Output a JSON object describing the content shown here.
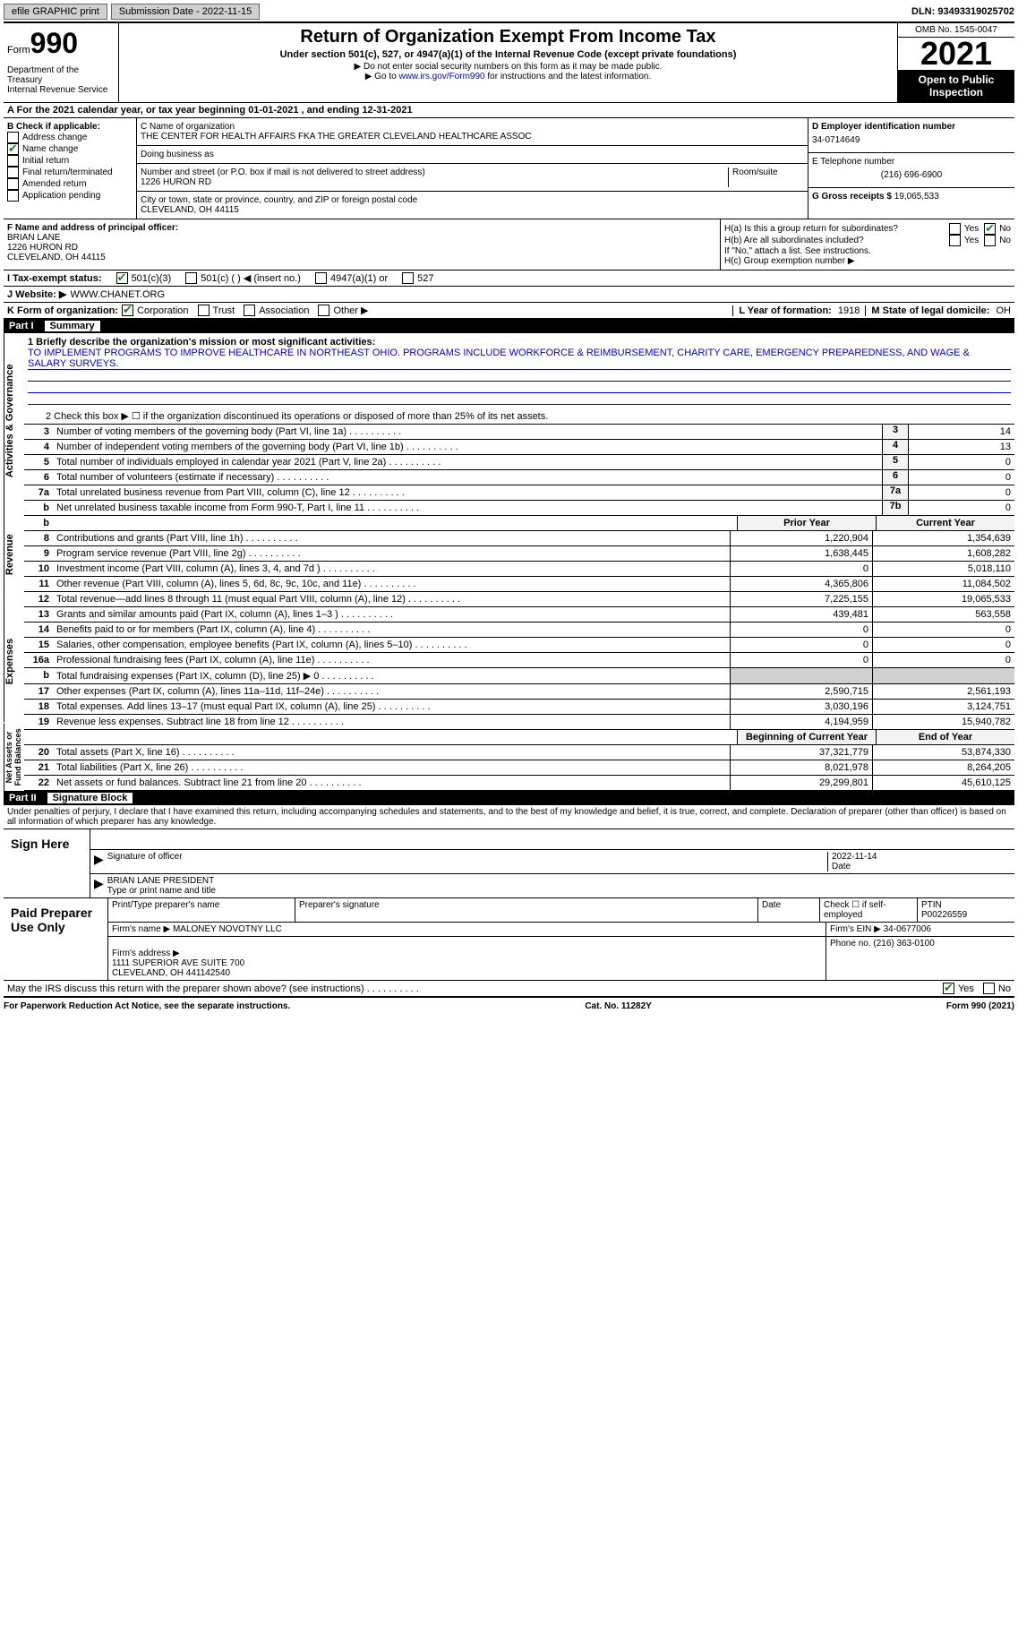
{
  "topbar": {
    "efile": "efile GRAPHIC print",
    "submission_label": "Submission Date - 2022-11-15",
    "dln": "DLN: 93493319025702"
  },
  "header": {
    "form_label": "Form",
    "form_num": "990",
    "dept": "Department of the Treasury\nInternal Revenue Service",
    "title": "Return of Organization Exempt From Income Tax",
    "subtitle": "Under section 501(c), 527, or 4947(a)(1) of the Internal Revenue Code (except private foundations)",
    "note1": "▶ Do not enter social security numbers on this form as it may be made public.",
    "note2_pre": "▶ Go to ",
    "note2_link": "www.irs.gov/Form990",
    "note2_post": " for instructions and the latest information.",
    "omb": "OMB No. 1545-0047",
    "year": "2021",
    "otp": "Open to Public Inspection"
  },
  "period": "A For the 2021 calendar year, or tax year beginning 01-01-2021   , and ending 12-31-2021",
  "boxB": {
    "label": "B Check if applicable:",
    "items": [
      "Address change",
      "Name change",
      "Initial return",
      "Final return/terminated",
      "Amended return",
      "Application pending"
    ],
    "checked_idx": 1
  },
  "boxC": {
    "name_label": "C Name of organization",
    "name": "THE CENTER FOR HEALTH AFFAIRS FKA THE GREATER CLEVELAND HEALTHCARE ASSOC",
    "dba_label": "Doing business as",
    "addr_label": "Number and street (or P.O. box if mail is not delivered to street address)",
    "room_label": "Room/suite",
    "addr": "1226 HURON RD",
    "city_label": "City or town, state or province, country, and ZIP or foreign postal code",
    "city": "CLEVELAND, OH  44115"
  },
  "boxD": {
    "label": "D Employer identification number",
    "val": "34-0714649"
  },
  "boxE": {
    "label": "E Telephone number",
    "val": "(216) 696-6900"
  },
  "boxG": {
    "label": "G Gross receipts $",
    "val": "19,065,533"
  },
  "boxF": {
    "label": "F Name and address of principal officer:",
    "name": "BRIAN LANE",
    "addr": "1226 HURON RD\nCLEVELAND, OH  44115"
  },
  "boxH": {
    "a": "H(a)  Is this a group return for subordinates?",
    "b": "H(b)  Are all subordinates included?",
    "b_note": "If \"No,\" attach a list. See instructions.",
    "c": "H(c)  Group exemption number ▶",
    "yes": "Yes",
    "no": "No"
  },
  "taxI": {
    "label": "I  Tax-exempt status:",
    "opts": [
      "501(c)(3)",
      "501(c) (  ) ◀ (insert no.)",
      "4947(a)(1) or",
      "527"
    ],
    "checked": 0
  },
  "taxJ": {
    "label": "J  Website: ▶",
    "val": "WWW.CHANET.ORG"
  },
  "taxK": {
    "label": "K Form of organization:",
    "opts": [
      "Corporation",
      "Trust",
      "Association",
      "Other ▶"
    ],
    "checked": 0
  },
  "taxL": {
    "label": "L Year of formation:",
    "val": "1918"
  },
  "taxM": {
    "label": "M State of legal domicile:",
    "val": "OH"
  },
  "part1": {
    "header_num": "Part I",
    "header_title": "Summary",
    "line1_label": "1  Briefly describe the organization's mission or most significant activities:",
    "line1_val": "TO IMPLEMENT PROGRAMS TO IMPROVE HEALTHCARE IN NORTHEAST OHIO. PROGRAMS INCLUDE WORKFORCE & REIMBURSEMENT, CHARITY CARE, EMERGENCY PREPAREDNESS, AND WAGE & SALARY SURVEYS.",
    "line2": "2   Check this box ▶ ☐ if the organization discontinued its operations or disposed of more than 25% of its net assets.",
    "rows_ag": [
      {
        "n": "3",
        "t": "Number of voting members of the governing body (Part VI, line 1a)",
        "b": "3",
        "v": "14"
      },
      {
        "n": "4",
        "t": "Number of independent voting members of the governing body (Part VI, line 1b)",
        "b": "4",
        "v": "13"
      },
      {
        "n": "5",
        "t": "Total number of individuals employed in calendar year 2021 (Part V, line 2a)",
        "b": "5",
        "v": "0"
      },
      {
        "n": "6",
        "t": "Total number of volunteers (estimate if necessary)",
        "b": "6",
        "v": "0"
      },
      {
        "n": "7a",
        "t": "Total unrelated business revenue from Part VIII, column (C), line 12",
        "b": "7a",
        "v": "0"
      },
      {
        "n": "b",
        "t": "Net unrelated business taxable income from Form 990-T, Part I, line 11",
        "b": "7b",
        "v": "0"
      }
    ],
    "col_prior": "Prior Year",
    "col_current": "Current Year",
    "rows_rev": [
      {
        "n": "8",
        "t": "Contributions and grants (Part VIII, line 1h)",
        "p": "1,220,904",
        "c": "1,354,639"
      },
      {
        "n": "9",
        "t": "Program service revenue (Part VIII, line 2g)",
        "p": "1,638,445",
        "c": "1,608,282"
      },
      {
        "n": "10",
        "t": "Investment income (Part VIII, column (A), lines 3, 4, and 7d )",
        "p": "0",
        "c": "5,018,110"
      },
      {
        "n": "11",
        "t": "Other revenue (Part VIII, column (A), lines 5, 6d, 8c, 9c, 10c, and 11e)",
        "p": "4,365,806",
        "c": "11,084,502"
      },
      {
        "n": "12",
        "t": "Total revenue—add lines 8 through 11 (must equal Part VIII, column (A), line 12)",
        "p": "7,225,155",
        "c": "19,065,533"
      }
    ],
    "rows_exp": [
      {
        "n": "13",
        "t": "Grants and similar amounts paid (Part IX, column (A), lines 1–3 )",
        "p": "439,481",
        "c": "563,558"
      },
      {
        "n": "14",
        "t": "Benefits paid to or for members (Part IX, column (A), line 4)",
        "p": "0",
        "c": "0"
      },
      {
        "n": "15",
        "t": "Salaries, other compensation, employee benefits (Part IX, column (A), lines 5–10)",
        "p": "0",
        "c": "0"
      },
      {
        "n": "16a",
        "t": "Professional fundraising fees (Part IX, column (A), line 11e)",
        "p": "0",
        "c": "0"
      },
      {
        "n": "b",
        "t": "Total fundraising expenses (Part IX, column (D), line 25) ▶ 0",
        "p": "",
        "c": "",
        "shade": true
      },
      {
        "n": "17",
        "t": "Other expenses (Part IX, column (A), lines 11a–11d, 11f–24e)",
        "p": "2,590,715",
        "c": "2,561,193"
      },
      {
        "n": "18",
        "t": "Total expenses. Add lines 13–17 (must equal Part IX, column (A), line 25)",
        "p": "3,030,196",
        "c": "3,124,751"
      },
      {
        "n": "19",
        "t": "Revenue less expenses. Subtract line 18 from line 12",
        "p": "4,194,959",
        "c": "15,940,782"
      }
    ],
    "col_beg": "Beginning of Current Year",
    "col_end": "End of Year",
    "rows_na": [
      {
        "n": "20",
        "t": "Total assets (Part X, line 16)",
        "p": "37,321,779",
        "c": "53,874,330"
      },
      {
        "n": "21",
        "t": "Total liabilities (Part X, line 26)",
        "p": "8,021,978",
        "c": "8,264,205"
      },
      {
        "n": "22",
        "t": "Net assets or fund balances. Subtract line 21 from line 20",
        "p": "29,299,801",
        "c": "45,610,125"
      }
    ],
    "vlabels": [
      "Activities & Governance",
      "Revenue",
      "Expenses",
      "Net Assets or Fund Balances"
    ]
  },
  "part2": {
    "header_num": "Part II",
    "header_title": "Signature Block",
    "penalties": "Under penalties of perjury, I declare that I have examined this return, including accompanying schedules and statements, and to the best of my knowledge and belief, it is true, correct, and complete. Declaration of preparer (other than officer) is based on all information of which preparer has any knowledge.",
    "sign_here": "Sign Here",
    "sig_officer": "Signature of officer",
    "sig_date": "Date",
    "sig_date_val": "2022-11-14",
    "sig_name_val": "BRIAN LANE  PRESIDENT",
    "sig_name_label": "Type or print name and title",
    "paid": "Paid Preparer Use Only",
    "prep_name_label": "Print/Type preparer's name",
    "prep_sig_label": "Preparer's signature",
    "prep_date_label": "Date",
    "prep_check": "Check ☐ if self-employed",
    "ptin_label": "PTIN",
    "ptin": "P00226559",
    "firm_name_label": "Firm's name    ▶",
    "firm_name": "MALONEY NOVOTNY LLC",
    "firm_ein_label": "Firm's EIN ▶",
    "firm_ein": "34-0677006",
    "firm_addr_label": "Firm's address ▶",
    "firm_addr": "1111 SUPERIOR AVE SUITE 700\nCLEVELAND, OH  441142540",
    "phone_label": "Phone no.",
    "phone": "(216) 363-0100",
    "discuss": "May the IRS discuss this return with the preparer shown above? (see instructions)",
    "yes": "Yes",
    "no": "No"
  },
  "footer": {
    "left": "For Paperwork Reduction Act Notice, see the separate instructions.",
    "mid": "Cat. No. 11282Y",
    "right": "Form 990 (2021)"
  }
}
